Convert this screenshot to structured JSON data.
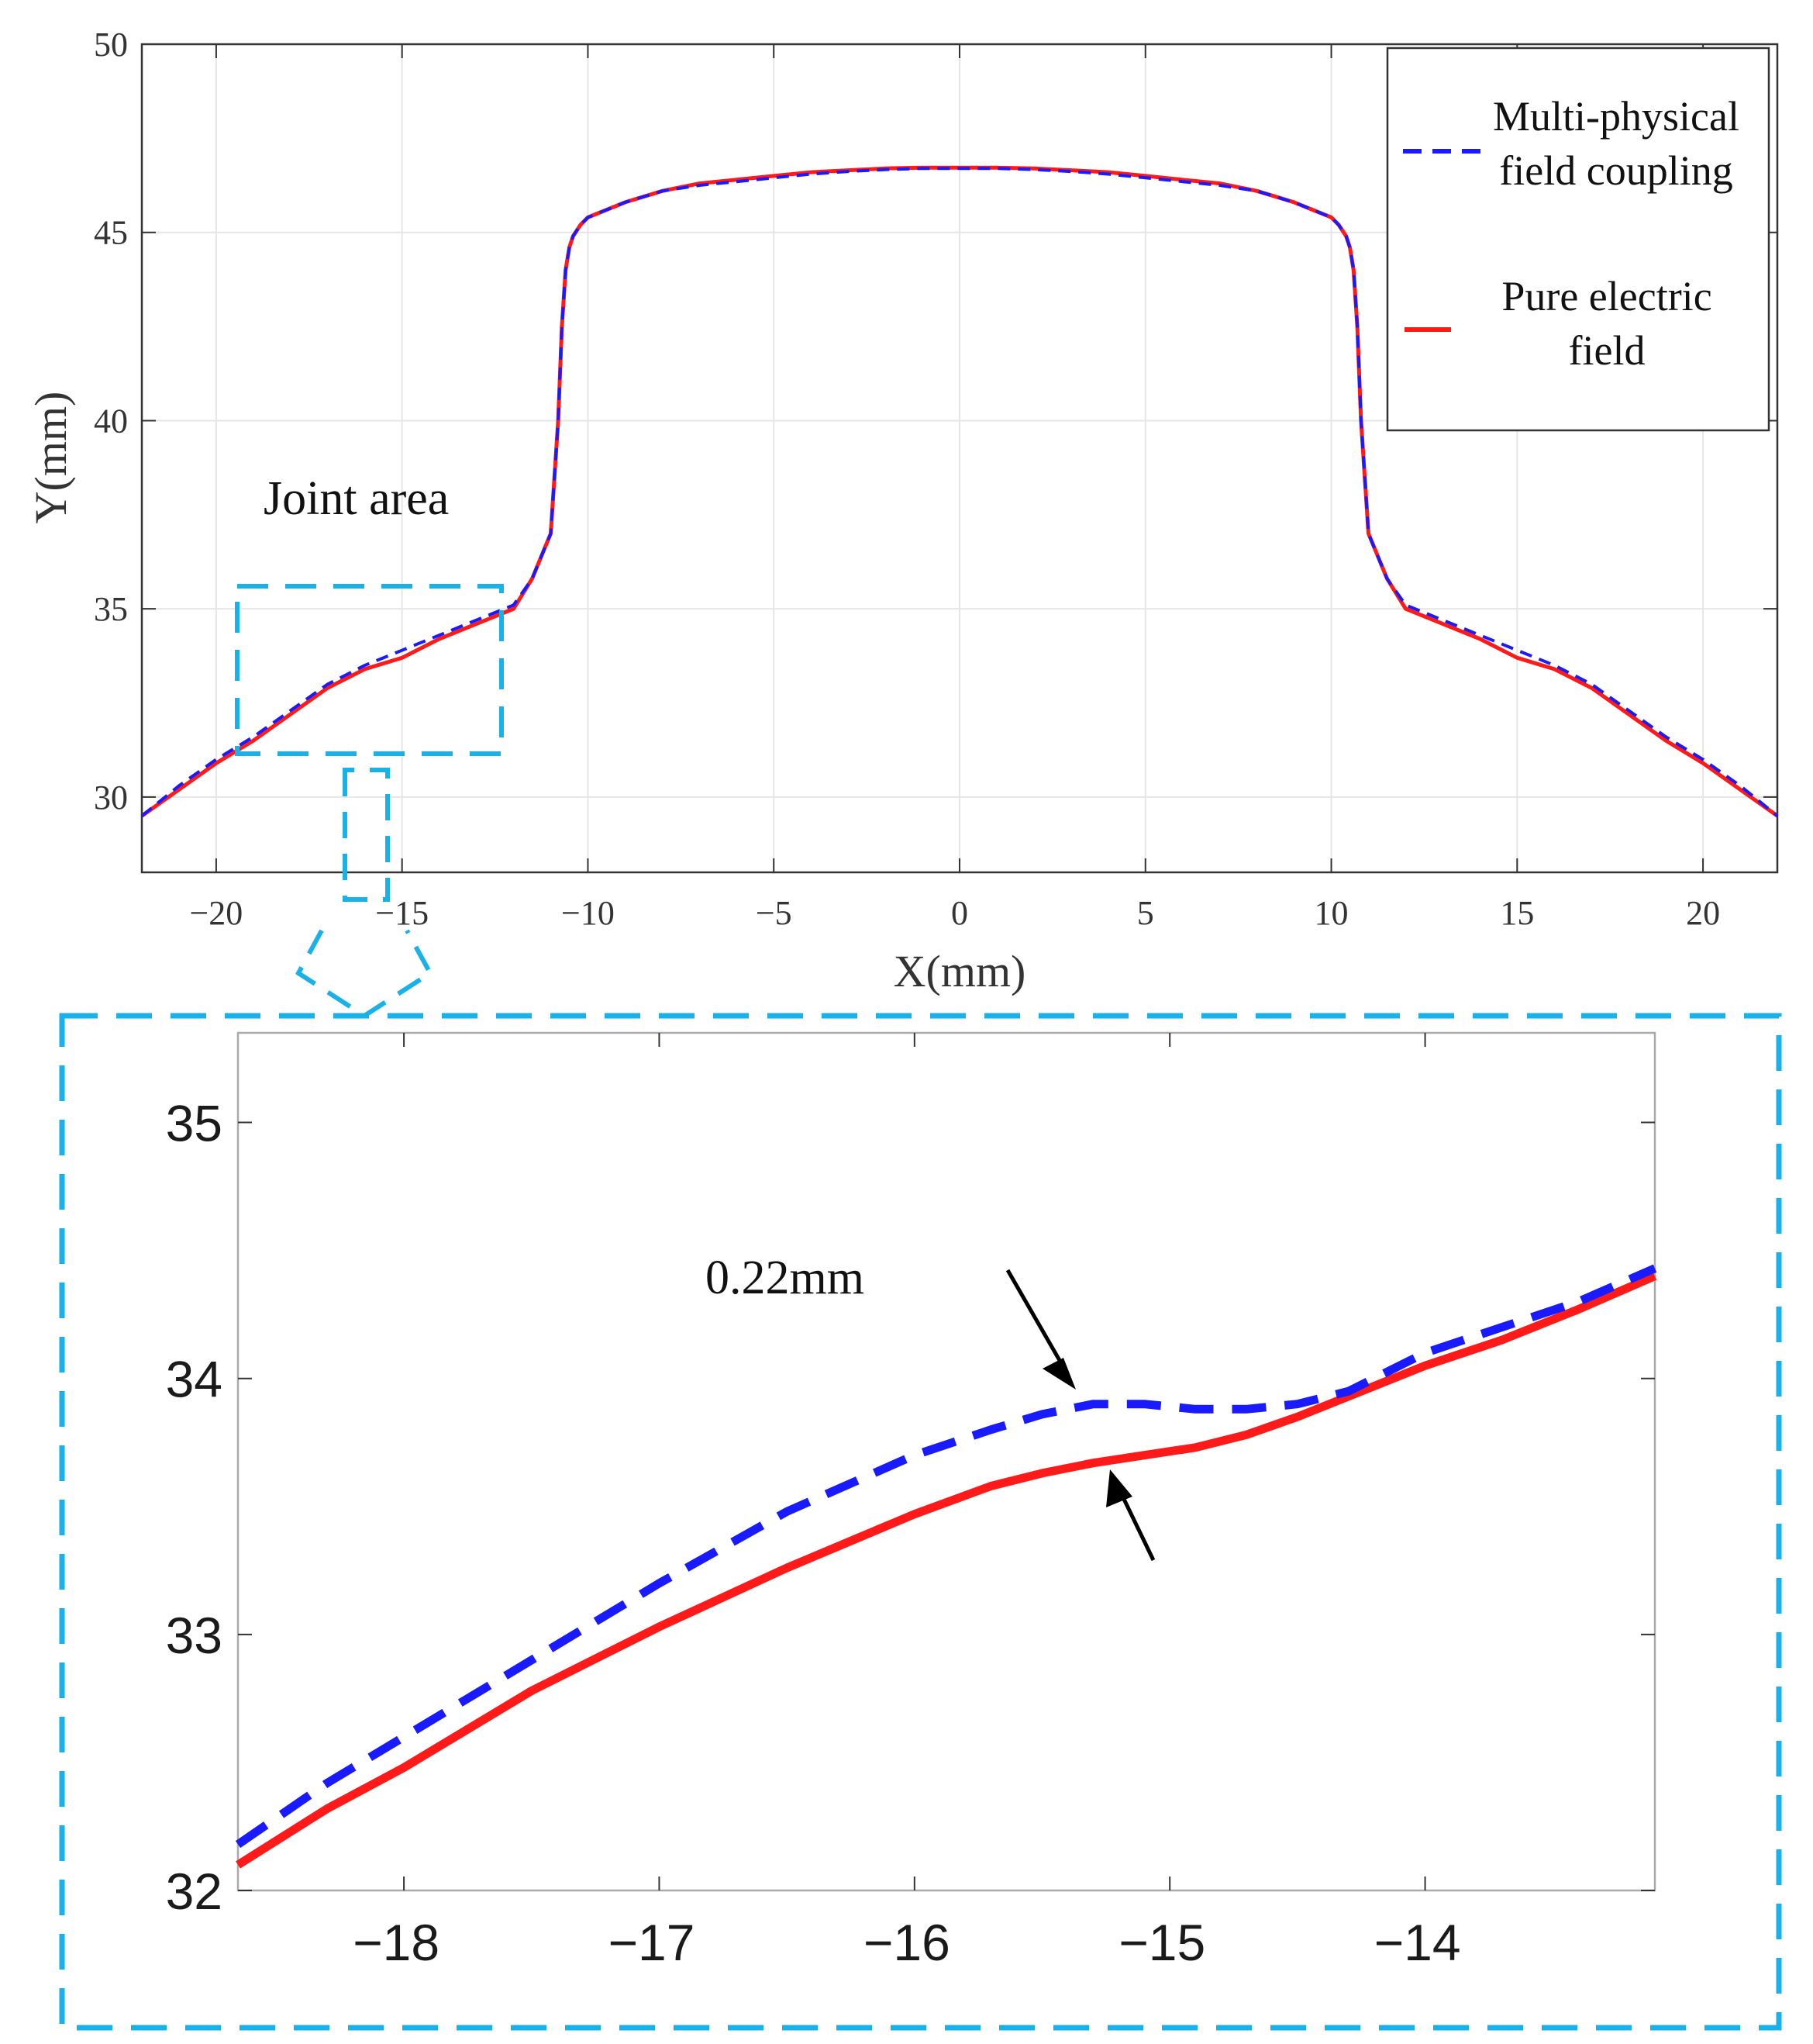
{
  "colors": {
    "multi": "#1a1aff",
    "pure": "#ff1a1a",
    "highlight": "#18b1e9",
    "arrow": "#000000"
  },
  "chart_data": [
    {
      "type": "line",
      "title": "",
      "xlabel": "X(mm)",
      "ylabel": "Y(mm)",
      "xlim": [
        -22,
        22
      ],
      "ylim": [
        28,
        50
      ],
      "xticks": [
        -20,
        -15,
        -10,
        -5,
        0,
        5,
        10,
        15,
        20
      ],
      "xtick_labels": [
        "−20",
        "−15",
        "−10",
        "−5",
        "0",
        "5",
        "10",
        "15",
        "20"
      ],
      "yticks": [
        30,
        35,
        40,
        45,
        50
      ],
      "ytick_labels": [
        "30",
        "35",
        "40",
        "45",
        "50"
      ],
      "grid": true,
      "legend_position": "top-right",
      "annotation": "Joint area",
      "series": [
        {
          "name": "Multi-physical field coupling",
          "legend_lines": [
            "Multi-physical",
            "field coupling"
          ],
          "style": "dashed",
          "x": [
            -22,
            -21,
            -20,
            -19,
            -18,
            -17,
            -16,
            -15,
            -14,
            -13,
            -12,
            -11.5,
            -11,
            -10.8,
            -10.7,
            -10.6,
            -10.5,
            -10.4,
            -10.2,
            -10,
            -9,
            -8,
            -7,
            -6,
            -5,
            -4,
            -3,
            -2,
            -1,
            0,
            1,
            2,
            3,
            4,
            5,
            6,
            7,
            8,
            9,
            10,
            10.2,
            10.4,
            10.5,
            10.6,
            10.7,
            10.8,
            11,
            11.5,
            12,
            13,
            14,
            15,
            16,
            17,
            18,
            19,
            20,
            21,
            22
          ],
          "y": [
            29.5,
            30.3,
            31.0,
            31.6,
            32.3,
            33.0,
            33.5,
            33.9,
            34.3,
            34.7,
            35.1,
            35.8,
            37.0,
            40.0,
            42.5,
            44.0,
            44.6,
            44.9,
            45.2,
            45.4,
            45.8,
            46.1,
            46.25,
            46.35,
            46.45,
            46.55,
            46.62,
            46.67,
            46.7,
            46.7,
            46.7,
            46.67,
            46.62,
            46.55,
            46.45,
            46.35,
            46.25,
            46.1,
            45.8,
            45.4,
            45.2,
            44.9,
            44.6,
            44.0,
            42.5,
            40.0,
            37.0,
            35.8,
            35.1,
            34.7,
            34.3,
            33.9,
            33.5,
            33.0,
            32.3,
            31.6,
            31.0,
            30.3,
            29.5
          ]
        },
        {
          "name": "Pure electric field",
          "legend_lines": [
            "Pure electric",
            "field"
          ],
          "style": "solid",
          "x": [
            -22,
            -21,
            -20,
            -19,
            -18,
            -17,
            -16,
            -15,
            -14,
            -13,
            -12,
            -11.5,
            -11,
            -10.8,
            -10.7,
            -10.6,
            -10.5,
            -10.4,
            -10.2,
            -10,
            -9,
            -8,
            -7,
            -6,
            -5,
            -4,
            -3,
            -2,
            -1,
            0,
            1,
            2,
            3,
            4,
            5,
            6,
            7,
            8,
            9,
            10,
            10.2,
            10.4,
            10.5,
            10.6,
            10.7,
            10.8,
            11,
            11.5,
            12,
            13,
            14,
            15,
            16,
            17,
            18,
            19,
            20,
            21,
            22
          ],
          "y": [
            29.5,
            30.2,
            30.9,
            31.5,
            32.2,
            32.9,
            33.4,
            33.7,
            34.2,
            34.6,
            35.0,
            35.8,
            37.0,
            40.0,
            42.5,
            44.0,
            44.6,
            44.9,
            45.2,
            45.4,
            45.8,
            46.1,
            46.3,
            46.4,
            46.5,
            46.6,
            46.65,
            46.7,
            46.72,
            46.72,
            46.72,
            46.7,
            46.65,
            46.6,
            46.5,
            46.4,
            46.3,
            46.1,
            45.8,
            45.4,
            45.2,
            44.9,
            44.6,
            44.0,
            42.5,
            40.0,
            37.0,
            35.8,
            35.0,
            34.6,
            34.2,
            33.7,
            33.4,
            32.9,
            32.2,
            31.5,
            30.9,
            30.2,
            29.5
          ]
        }
      ]
    },
    {
      "type": "line",
      "title": "",
      "xlabel": "",
      "ylabel": "",
      "xlim": [
        -18.65,
        -13.1
      ],
      "ylim": [
        32,
        35.35
      ],
      "xticks": [
        -18,
        -17,
        -16,
        -15,
        -14
      ],
      "xtick_labels": [
        "−18",
        "−17",
        "−16",
        "−15",
        "−14"
      ],
      "yticks": [
        32,
        33,
        34,
        35
      ],
      "ytick_labels": [
        "32",
        "33",
        "34",
        "35"
      ],
      "grid": false,
      "annotation": "0.22mm",
      "series": [
        {
          "name": "Multi-physical field coupling",
          "style": "dashed",
          "x": [
            -18.65,
            -18.3,
            -18.0,
            -17.5,
            -17.0,
            -16.5,
            -16.0,
            -15.7,
            -15.5,
            -15.3,
            -15.1,
            -14.9,
            -14.7,
            -14.5,
            -14.3,
            -14.0,
            -13.7,
            -13.4,
            -13.1
          ],
          "y": [
            32.18,
            32.42,
            32.6,
            32.9,
            33.2,
            33.48,
            33.7,
            33.8,
            33.86,
            33.9,
            33.9,
            33.88,
            33.88,
            33.9,
            33.95,
            34.1,
            34.2,
            34.3,
            34.43
          ]
        },
        {
          "name": "Pure electric field",
          "style": "solid",
          "x": [
            -18.65,
            -18.3,
            -18.0,
            -17.5,
            -17.0,
            -16.5,
            -16.0,
            -15.7,
            -15.5,
            -15.3,
            -15.1,
            -14.9,
            -14.7,
            -14.5,
            -14.3,
            -14.0,
            -13.7,
            -13.4,
            -13.1
          ],
          "y": [
            32.1,
            32.32,
            32.48,
            32.78,
            33.03,
            33.26,
            33.47,
            33.58,
            33.63,
            33.67,
            33.7,
            33.73,
            33.78,
            33.85,
            33.93,
            34.05,
            34.15,
            34.27,
            34.4
          ]
        }
      ]
    }
  ]
}
